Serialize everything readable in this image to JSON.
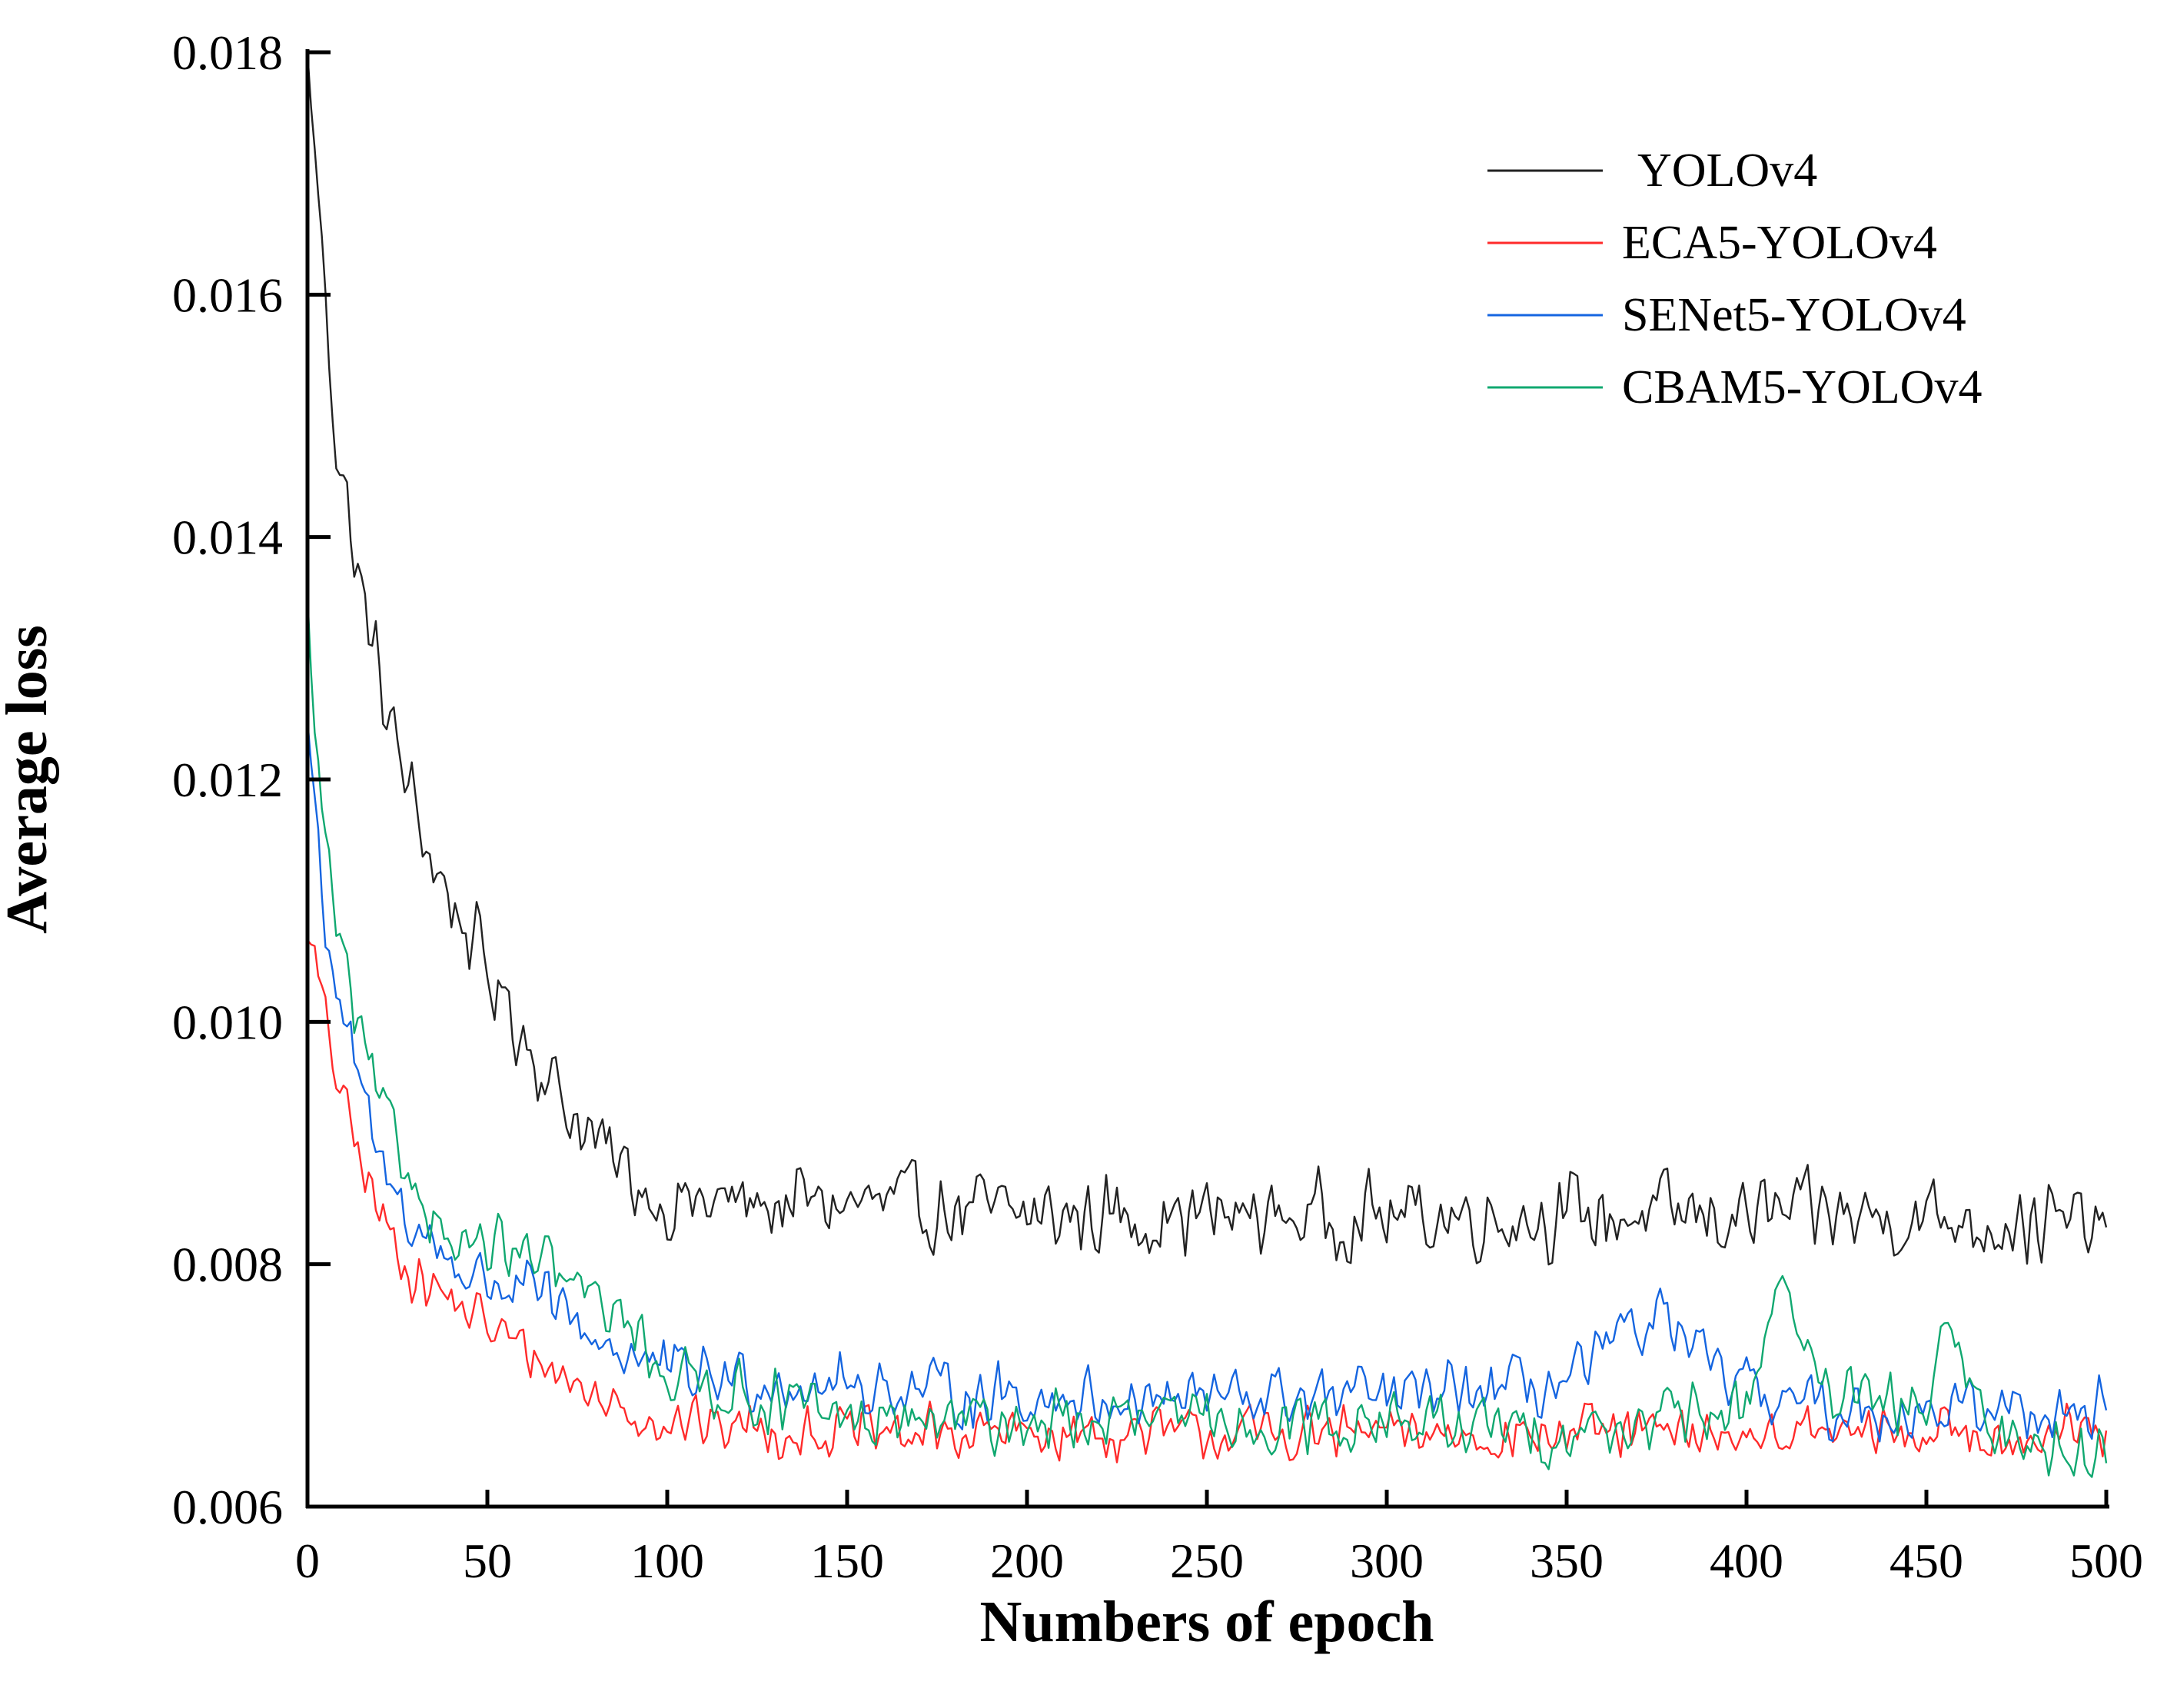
{
  "chart_data": {
    "type": "line",
    "title": "",
    "xlabel": "Numbers of epoch",
    "ylabel": "Average loss",
    "xlim": [
      0,
      500
    ],
    "ylim": [
      0.006,
      0.018
    ],
    "xticks": [
      0,
      50,
      100,
      150,
      200,
      250,
      300,
      350,
      400,
      450,
      500
    ],
    "xtick_labels": [
      "0",
      "50",
      "100",
      "150",
      "200",
      "250",
      "300",
      "350",
      "400",
      "450",
      "500"
    ],
    "yticks": [
      0.006,
      0.008,
      0.01,
      0.012,
      0.014,
      0.016,
      0.018
    ],
    "ytick_labels": [
      "0.006",
      "0.008",
      "0.010",
      "0.012",
      "0.014",
      "0.016",
      "0.018"
    ],
    "grid": false,
    "legend_position": "top-right",
    "series": [
      {
        "name": "YOLOv4",
        "color": "#222222",
        "noise": 0.00042,
        "anchors": [
          [
            0,
            0.018
          ],
          [
            3,
            0.0168
          ],
          [
            8,
            0.0148
          ],
          [
            15,
            0.0135
          ],
          [
            25,
            0.0122
          ],
          [
            35,
            0.0113
          ],
          [
            50,
            0.0104
          ],
          [
            60,
            0.0099
          ],
          [
            70,
            0.0094
          ],
          [
            80,
            0.009
          ],
          [
            90,
            0.0087
          ],
          [
            100,
            0.0085
          ],
          [
            150,
            0.0085
          ],
          [
            200,
            0.0084
          ],
          [
            250,
            0.0084
          ],
          [
            300,
            0.0084
          ],
          [
            350,
            0.0084
          ],
          [
            400,
            0.0084
          ],
          [
            450,
            0.0084
          ],
          [
            500,
            0.0083
          ]
        ]
      },
      {
        "name": "ECA5-YOLOv4",
        "color": "#ff2a2a",
        "noise": 0.00028,
        "anchors": [
          [
            0,
            0.0108
          ],
          [
            5,
            0.01
          ],
          [
            10,
            0.0093
          ],
          [
            20,
            0.0084
          ],
          [
            30,
            0.0079
          ],
          [
            45,
            0.0076
          ],
          [
            60,
            0.0073
          ],
          [
            80,
            0.0069
          ],
          [
            100,
            0.0067
          ],
          [
            150,
            0.0066
          ],
          [
            200,
            0.0066
          ],
          [
            250,
            0.0066
          ],
          [
            300,
            0.0066
          ],
          [
            350,
            0.0066
          ],
          [
            400,
            0.0066
          ],
          [
            450,
            0.0066
          ],
          [
            500,
            0.0066
          ]
        ]
      },
      {
        "name": "SENet5-YOLOv4",
        "color": "#1565e0",
        "noise": 0.00032,
        "anchors": [
          [
            0,
            0.0125
          ],
          [
            5,
            0.0108
          ],
          [
            10,
            0.01
          ],
          [
            20,
            0.0088
          ],
          [
            30,
            0.0083
          ],
          [
            45,
            0.0079
          ],
          [
            60,
            0.0078
          ],
          [
            80,
            0.0074
          ],
          [
            100,
            0.0071
          ],
          [
            150,
            0.007
          ],
          [
            200,
            0.0069
          ],
          [
            250,
            0.0069
          ],
          [
            300,
            0.0069
          ],
          [
            350,
            0.007
          ],
          [
            375,
            0.0076
          ],
          [
            390,
            0.0071
          ],
          [
            420,
            0.0068
          ],
          [
            450,
            0.0068
          ],
          [
            500,
            0.0068
          ]
        ]
      },
      {
        "name": "CBAM5-YOLOv4",
        "color": "#10a870",
        "noise": 0.00032,
        "anchors": [
          [
            0,
            0.0134
          ],
          [
            3,
            0.012
          ],
          [
            8,
            0.0108
          ],
          [
            15,
            0.0098
          ],
          [
            25,
            0.0089
          ],
          [
            40,
            0.0082
          ],
          [
            55,
            0.0081
          ],
          [
            70,
            0.0079
          ],
          [
            90,
            0.0075
          ],
          [
            100,
            0.0071
          ],
          [
            150,
            0.0067
          ],
          [
            200,
            0.0067
          ],
          [
            250,
            0.0067
          ],
          [
            300,
            0.0067
          ],
          [
            350,
            0.0066
          ],
          [
            400,
            0.0068
          ],
          [
            410,
            0.008
          ],
          [
            420,
            0.0069
          ],
          [
            450,
            0.0068
          ],
          [
            455,
            0.0074
          ],
          [
            470,
            0.0066
          ],
          [
            500,
            0.0064
          ]
        ]
      }
    ]
  }
}
